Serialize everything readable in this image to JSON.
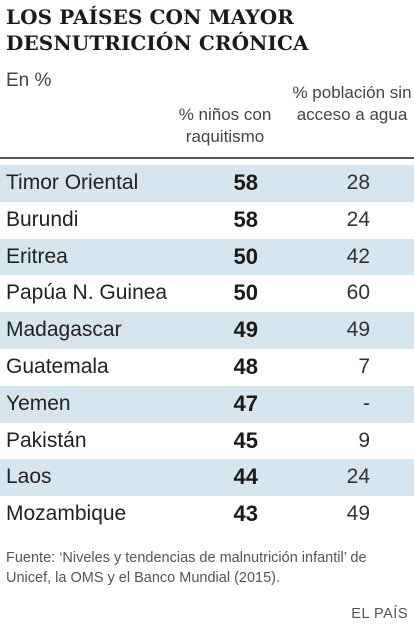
{
  "title": "LOS PAÍSES CON MAYOR DESNUTRICIÓN CRÓNICA",
  "unit_label": "En %",
  "columns": {
    "stunting": "% niños con raquitismo",
    "water": "% población sin acceso a agua"
  },
  "chart_data": {
    "type": "table",
    "title": "LOS PAÍSES CON MAYOR DESNUTRICIÓN CRÓNICA",
    "columns": [
      "% niños con raquitismo",
      "% población sin acceso a agua"
    ],
    "rows": [
      {
        "country": "Timor Oriental",
        "stunting": "58",
        "water": "28"
      },
      {
        "country": "Burundi",
        "stunting": "58",
        "water": "24"
      },
      {
        "country": "Eritrea",
        "stunting": "50",
        "water": "42"
      },
      {
        "country": "Papúa N. Guinea",
        "stunting": "50",
        "water": "60"
      },
      {
        "country": "Madagascar",
        "stunting": "49",
        "water": "49"
      },
      {
        "country": "Guatemala",
        "stunting": "48",
        "water": "7"
      },
      {
        "country": "Yemen",
        "stunting": "47",
        "water": "-"
      },
      {
        "country": "Pakistán",
        "stunting": "45",
        "water": "9"
      },
      {
        "country": "Laos",
        "stunting": "44",
        "water": "24"
      },
      {
        "country": "Mozambique",
        "stunting": "43",
        "water": "49"
      }
    ]
  },
  "source": "Fuente: ‘Niveles y tendencias de malnutrición infantil’ de Unicef, la OMS y el Banco Mundial (2015).",
  "brand": "EL PAÍS",
  "colors": {
    "row_shade": "#d7e5ee",
    "rule": "#555555"
  }
}
